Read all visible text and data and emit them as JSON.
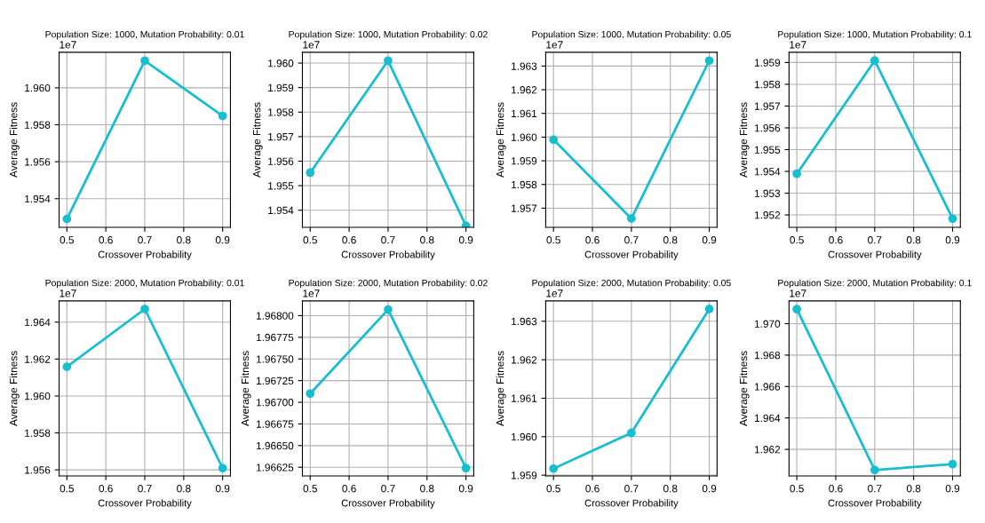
{
  "chart_data": [
    {
      "type": "line",
      "title": "Population Size: 1000, Mutation Probability: 0.01",
      "xlabel": "Crossover Probability",
      "ylabel": "Average Fitness",
      "annotations": [
        "1e7"
      ],
      "x": [
        0.5,
        0.7,
        0.9
      ],
      "series": [
        {
          "color": "#17becf",
          "values": [
            1.9529,
            1.96147,
            1.95848
          ]
        }
      ],
      "xlim": [
        0.48,
        0.92
      ],
      "xticks": [
        0.5,
        0.6,
        0.7,
        0.8,
        0.9
      ],
      "ylim": [
        1.95245,
        1.96192
      ],
      "yticks": [
        1.954,
        1.956,
        1.958,
        {
          "value": 1.96,
          "label": "1.960"
        }
      ],
      "grid": true,
      "marker": "circle"
    },
    {
      "type": "line",
      "title": "Population Size: 1000, Mutation Probability: 0.02",
      "xlabel": "Crossover Probability",
      "ylabel": "Average Fitness",
      "annotations": [
        "1e7"
      ],
      "x": [
        0.5,
        0.7,
        0.9
      ],
      "series": [
        {
          "color": "#17becf",
          "values": [
            1.95553,
            1.9601,
            1.95336
          ]
        }
      ],
      "xlim": [
        0.48,
        0.92
      ],
      "xticks": [
        0.5,
        0.6,
        0.7,
        0.8,
        0.9
      ],
      "ylim": [
        1.9533,
        1.96044
      ],
      "yticks": [
        1.954,
        1.955,
        1.956,
        1.957,
        1.958,
        1.959,
        {
          "value": 1.96,
          "label": "1.960"
        }
      ],
      "grid": true,
      "marker": "circle"
    },
    {
      "type": "line",
      "title": "Population Size: 1000, Mutation Probability: 0.05",
      "xlabel": "Crossover Probability",
      "ylabel": "Average Fitness",
      "annotations": [
        "1e7"
      ],
      "x": [
        0.5,
        0.7,
        0.9
      ],
      "series": [
        {
          "color": "#17becf",
          "values": [
            1.95989,
            1.95656,
            1.96323
          ]
        }
      ],
      "xlim": [
        0.48,
        0.92
      ],
      "xticks": [
        0.5,
        0.6,
        0.7,
        0.8,
        0.9
      ],
      "ylim": [
        1.95619,
        1.96358
      ],
      "yticks": [
        1.957,
        1.958,
        1.959,
        {
          "value": 1.96,
          "label": "1.960"
        },
        1.961,
        1.962,
        1.963
      ],
      "grid": true,
      "marker": "circle"
    },
    {
      "type": "line",
      "title": "Population Size: 1000, Mutation Probability: 0.1",
      "xlabel": "Crossover Probability",
      "ylabel": "Average Fitness",
      "annotations": [
        "1e7"
      ],
      "x": [
        0.5,
        0.7,
        0.9
      ],
      "series": [
        {
          "color": "#17becf",
          "values": [
            1.95389,
            1.95909,
            1.95183
          ]
        }
      ],
      "xlim": [
        0.48,
        0.92
      ],
      "xticks": [
        0.5,
        0.6,
        0.7,
        0.8,
        0.9
      ],
      "ylim": [
        1.95143,
        1.95947
      ],
      "yticks": [
        1.952,
        1.953,
        1.954,
        1.955,
        1.956,
        1.957,
        1.958,
        1.959
      ],
      "grid": true,
      "marker": "circle"
    },
    {
      "type": "line",
      "title": "Population Size: 2000, Mutation Probability: 0.01",
      "xlabel": "Crossover Probability",
      "ylabel": "Average Fitness",
      "annotations": [
        "1e7"
      ],
      "x": [
        0.5,
        0.7,
        0.9
      ],
      "series": [
        {
          "color": "#17becf",
          "values": [
            1.96158,
            1.96471,
            1.95609
          ]
        }
      ],
      "xlim": [
        0.48,
        0.92
      ],
      "xticks": [
        0.5,
        0.6,
        0.7,
        0.8,
        0.9
      ],
      "ylim": [
        1.95567,
        1.96515
      ],
      "yticks": [
        1.956,
        1.958,
        {
          "value": 1.96,
          "label": "1.960"
        },
        1.962,
        1.964
      ],
      "grid": true,
      "marker": "circle"
    },
    {
      "type": "line",
      "title": "Population Size: 2000, Mutation Probability: 0.02",
      "xlabel": "Crossover Probability",
      "ylabel": "Average Fitness",
      "annotations": [
        "1e7"
      ],
      "x": [
        0.5,
        0.7,
        0.9
      ],
      "series": [
        {
          "color": "#17becf",
          "values": [
            1.9671,
            1.96807,
            1.96624
          ]
        }
      ],
      "xlim": [
        0.48,
        0.92
      ],
      "xticks": [
        0.5,
        0.6,
        0.7,
        0.8,
        0.9
      ],
      "ylim": [
        1.96615,
        1.96817
      ],
      "yticks": [
        1.96625,
        {
          "value": 1.9665,
          "label": "1.96650"
        },
        1.96675,
        {
          "value": 1.967,
          "label": "1.96700"
        },
        1.96725,
        {
          "value": 1.9675,
          "label": "1.96750"
        },
        1.96775,
        {
          "value": 1.968,
          "label": "1.96800"
        }
      ],
      "grid": true,
      "marker": "circle"
    },
    {
      "type": "line",
      "title": "Population Size: 2000, Mutation Probability: 0.05",
      "xlabel": "Crossover Probability",
      "ylabel": "Average Fitness",
      "annotations": [
        "1e7"
      ],
      "x": [
        0.5,
        0.7,
        0.9
      ],
      "series": [
        {
          "color": "#17becf",
          "values": [
            1.95917,
            1.9601,
            1.96332
          ]
        }
      ],
      "xlim": [
        0.48,
        0.92
      ],
      "xticks": [
        0.5,
        0.6,
        0.7,
        0.8,
        0.9
      ],
      "ylim": [
        1.95898,
        1.96353
      ],
      "yticks": [
        1.959,
        {
          "value": 1.96,
          "label": "1.960"
        },
        1.961,
        1.962,
        1.963
      ],
      "grid": true,
      "marker": "circle"
    },
    {
      "type": "line",
      "title": "Population Size: 2000, Mutation Probability: 0.1",
      "xlabel": "Crossover Probability",
      "ylabel": "Average Fitness",
      "annotations": [
        "1e7"
      ],
      "x": [
        0.5,
        0.7,
        0.9
      ],
      "series": [
        {
          "color": "#17becf",
          "values": [
            1.97092,
            1.96069,
            1.96106
          ]
        }
      ],
      "xlim": [
        0.48,
        0.92
      ],
      "xticks": [
        0.5,
        0.6,
        0.7,
        0.8,
        0.9
      ],
      "ylim": [
        1.96031,
        1.97145
      ],
      "yticks": [
        1.962,
        1.964,
        1.966,
        1.968,
        {
          "value": 1.97,
          "label": "1.970"
        }
      ],
      "grid": true,
      "marker": "circle"
    }
  ]
}
